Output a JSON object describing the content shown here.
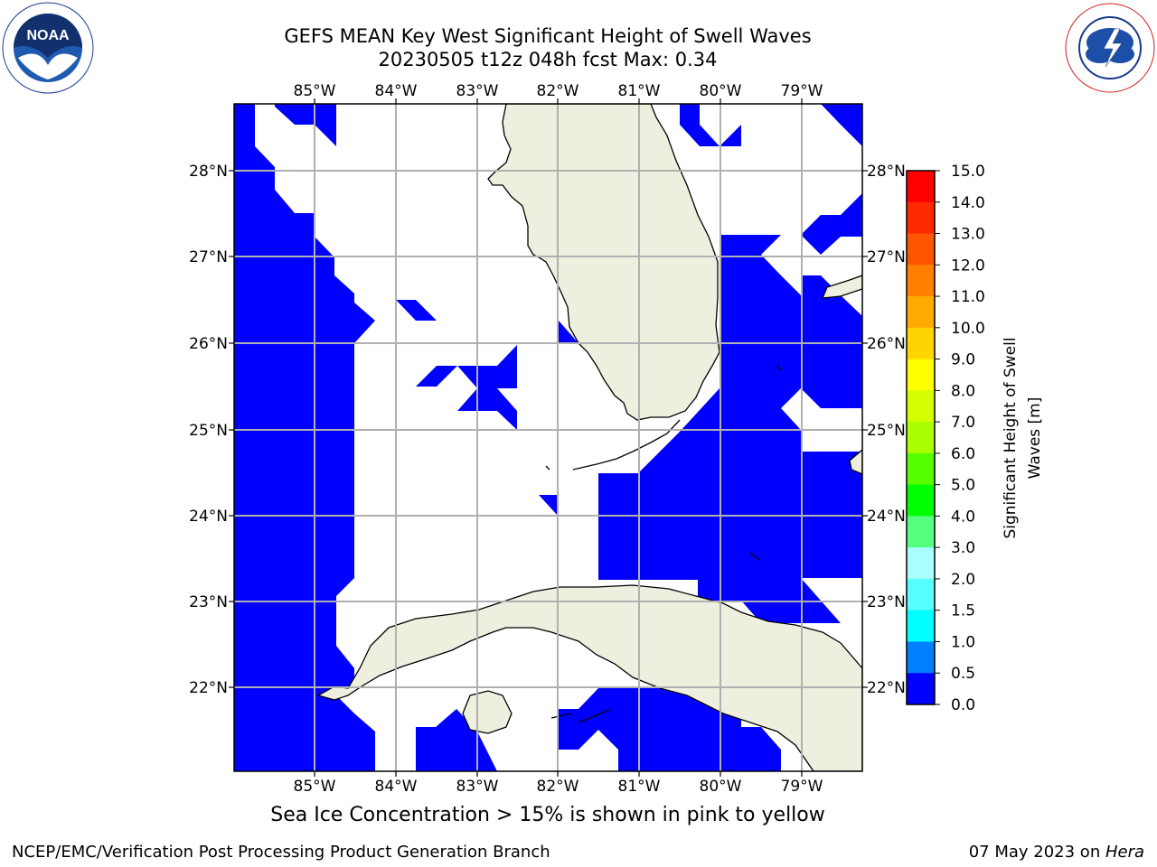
{
  "title": {
    "line1": "GEFS MEAN Key West Significant Height of Swell Waves",
    "line2": "20230505 t12z 048h fcst   Max: 0.34"
  },
  "logos": {
    "noaa_text": "NOAA",
    "nws_text": "NATIONAL WEATHER SERVICE"
  },
  "map": {
    "lon_ticks": [
      "85°W",
      "84°W",
      "83°W",
      "82°W",
      "81°W",
      "80°W",
      "79°W"
    ],
    "lat_ticks": [
      "28°N",
      "27°N",
      "26°N",
      "25°N",
      "24°N",
      "23°N",
      "22°N"
    ],
    "ocean_color": "#0000ff",
    "land_color": "#efefdf",
    "grid_color": "#b0b0b0"
  },
  "colorbar": {
    "label_line1": "Significant Height of Swell",
    "label_line2": "Waves [m]",
    "ticks": [
      "15.0",
      "14.0",
      "13.0",
      "12.0",
      "11.0",
      "10.0",
      "9.0",
      "8.0",
      "7.0",
      "6.0",
      "5.0",
      "4.0",
      "3.0",
      "2.0",
      "1.5",
      "1.0",
      "0.5",
      "0.0"
    ],
    "colors": [
      "#ff0000",
      "#ff2a00",
      "#ff5500",
      "#ff7f00",
      "#ffaa00",
      "#ffd400",
      "#ffff00",
      "#d4ff00",
      "#aaff00",
      "#55ff00",
      "#00ff00",
      "#55ff7f",
      "#aaffff",
      "#55ffff",
      "#00ffff",
      "#007fff",
      "#0000ff"
    ]
  },
  "note": "Sea Ice Concentration > 15% is shown in pink to yellow",
  "footer": {
    "left": "NCEP/EMC/Verification Post Processing Product Generation Branch",
    "right_prefix": "07 May 2023 on ",
    "right_host": "Hera"
  }
}
